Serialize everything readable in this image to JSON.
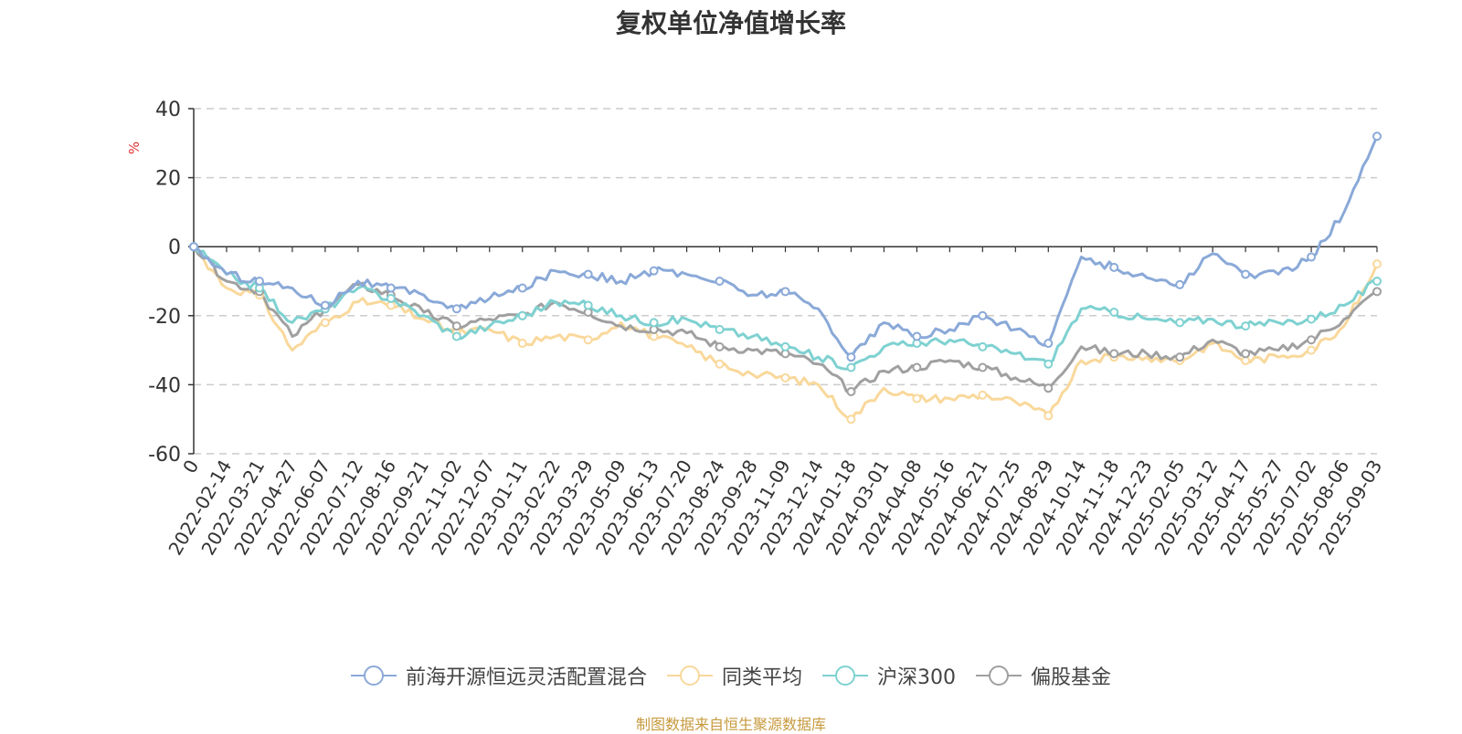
{
  "chart_data": {
    "type": "line",
    "title": "复权单位净值增长率",
    "ylabel": "%",
    "ylim": [
      -60,
      40
    ],
    "yticks": [
      40,
      20,
      0,
      -20,
      -40,
      -60
    ],
    "grid": true,
    "legend_position": "bottom",
    "x": [
      "0",
      "2022-02-14",
      "2022-03-21",
      "2022-04-27",
      "2022-06-07",
      "2022-07-12",
      "2022-08-16",
      "2022-09-21",
      "2022-11-02",
      "2022-12-07",
      "2023-01-11",
      "2023-02-22",
      "2023-03-29",
      "2023-05-09",
      "2023-06-13",
      "2023-07-20",
      "2023-08-24",
      "2023-09-28",
      "2023-11-09",
      "2023-12-14",
      "2024-01-18",
      "2024-03-01",
      "2024-04-08",
      "2024-05-16",
      "2024-06-21",
      "2024-07-25",
      "2024-08-29",
      "2024-10-14",
      "2024-11-18",
      "2024-12-23",
      "2025-02-05",
      "2025-03-12",
      "2025-04-17",
      "2025-05-27",
      "2025-07-02",
      "2025-08-06",
      "2025-09-03"
    ],
    "series": [
      {
        "name": "前海开源恒远灵活配置混合",
        "color": "#8aa9d8",
        "values": [
          0,
          -8,
          -10,
          -12,
          -17,
          -10,
          -12,
          -14,
          -18,
          -15,
          -12,
          -7,
          -8,
          -10,
          -7,
          -8,
          -10,
          -14,
          -13,
          -18,
          -32,
          -22,
          -26,
          -24,
          -20,
          -24,
          -28,
          -3,
          -6,
          -9,
          -11,
          -2,
          -8,
          -8,
          -3,
          10,
          32
        ]
      },
      {
        "name": "同类平均",
        "color": "#f9d89b",
        "values": [
          0,
          -12,
          -14,
          -30,
          -22,
          -16,
          -17,
          -21,
          -25,
          -24,
          -28,
          -26,
          -27,
          -22,
          -26,
          -29,
          -34,
          -37,
          -38,
          -40,
          -50,
          -41,
          -44,
          -44,
          -43,
          -45,
          -49,
          -33,
          -32,
          -32,
          -33,
          -28,
          -33,
          -32,
          -30,
          -23,
          -5
        ]
      },
      {
        "name": "沪深300",
        "color": "#7fd1d1",
        "values": [
          0,
          -8,
          -12,
          -22,
          -18,
          -12,
          -15,
          -20,
          -26,
          -23,
          -20,
          -16,
          -17,
          -20,
          -22,
          -21,
          -24,
          -26,
          -29,
          -32,
          -35,
          -29,
          -28,
          -27,
          -29,
          -31,
          -34,
          -18,
          -19,
          -21,
          -22,
          -21,
          -23,
          -22,
          -21,
          -17,
          -10
        ]
      },
      {
        "name": "偏股基金",
        "color": "#a0a0a0",
        "values": [
          0,
          -10,
          -13,
          -26,
          -18,
          -11,
          -14,
          -19,
          -23,
          -21,
          -20,
          -16,
          -19,
          -23,
          -24,
          -25,
          -29,
          -30,
          -31,
          -34,
          -42,
          -36,
          -35,
          -33,
          -35,
          -38,
          -41,
          -29,
          -31,
          -31,
          -32,
          -27,
          -31,
          -30,
          -27,
          -21,
          -13
        ]
      }
    ]
  },
  "legend": {
    "items": [
      {
        "label": "前海开源恒远灵活配置混合",
        "color": "#8aa9d8"
      },
      {
        "label": "同类平均",
        "color": "#f9d89b"
      },
      {
        "label": "沪深300",
        "color": "#7fd1d1"
      },
      {
        "label": "偏股基金",
        "color": "#a0a0a0"
      }
    ]
  },
  "source_note": "制图数据来自恒生聚源数据库"
}
